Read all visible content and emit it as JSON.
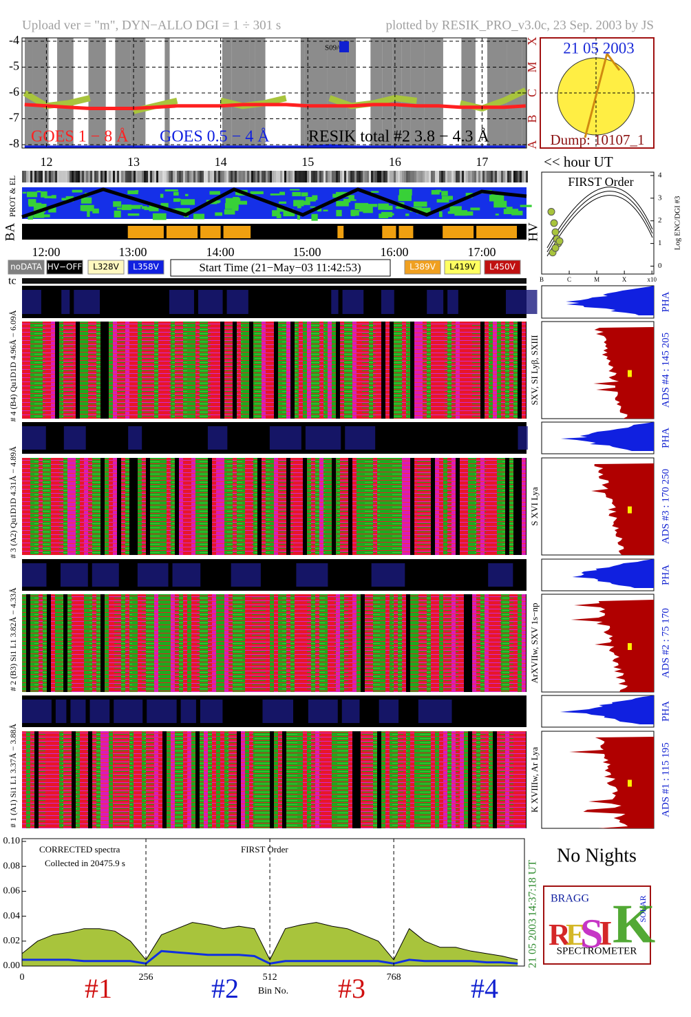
{
  "header": {
    "upload": "Upload ver = \"m\", DYN−ALLO DGI =   1 ÷ 301 s",
    "plotted": "plotted by RESIK_PRO_v3.0c, 23 Sep. 2003 by JS"
  },
  "chart_data": [
    {
      "type": "line",
      "annotation": "S09/02",
      "x": [
        11.75,
        12.0,
        12.25,
        12.5,
        12.75,
        13.0,
        13.25,
        13.5,
        13.75,
        14.0,
        14.25,
        14.5,
        14.75,
        15.0,
        15.25,
        15.5,
        15.75,
        16.0,
        16.25,
        16.5,
        16.75,
        17.0,
        17.25,
        17.5
      ],
      "series": [
        {
          "name": "GOES 1 − 8 Å",
          "color": "#ff2020",
          "values": [
            -6.45,
            -6.5,
            -6.55,
            -6.6,
            -6.6,
            -6.6,
            -6.55,
            -6.5,
            -6.5,
            -6.5,
            -6.45,
            -6.45,
            -6.45,
            -6.5,
            -6.5,
            -6.5,
            -6.45,
            -6.45,
            -6.5,
            -6.5,
            -6.55,
            -6.55,
            -6.55,
            -6.5
          ]
        },
        {
          "name": "GOES 0.5 − 4 Å",
          "color": "#1020e0",
          "values": [
            -8.1,
            -8.1,
            -8.1,
            -8.1,
            -8.1,
            -8.1,
            -8.1,
            -8.1,
            -8.1,
            -8.1,
            -8.1,
            -8.1,
            -8.1,
            -8.1,
            -8.05,
            -8.1,
            -8.1,
            -8.1,
            -8.1,
            -8.1,
            -8.1,
            -8.1,
            -8.1,
            -8.1
          ]
        },
        {
          "name": "RESIK total #2  3.8 − 4.3 Å",
          "color": "#a8c43c",
          "values": [
            -6.0,
            -6.5,
            -6.4,
            -6.2,
            null,
            -6.7,
            -6.5,
            -6.3,
            null,
            -6.3,
            -6.5,
            -6.4,
            -6.2,
            null,
            -6.2,
            -6.5,
            -6.4,
            -6.2,
            -6.3,
            null,
            -6.4,
            -6.6,
            -6.3,
            -5.9
          ]
        }
      ],
      "xlim": [
        11.72,
        17.51
      ],
      "ylim": [
        -8.13,
        -3.87
      ],
      "xticks": [
        12,
        13,
        14,
        15,
        16,
        17
      ],
      "yticks": [
        -4,
        -5,
        -6,
        -7,
        -8
      ],
      "y2lim": [
        -8.13,
        -3.87
      ],
      "y2ticks": [
        {
          "value": -4,
          "label": "X"
        },
        {
          "value": -5,
          "label": "M"
        },
        {
          "value": -6,
          "label": "C"
        },
        {
          "value": -7,
          "label": "B"
        },
        {
          "value": -8,
          "label": "A"
        }
      ],
      "grid": true
    },
    {
      "type": "scatter",
      "title": "FIRST Order",
      "ylabel": "Log ENC/DGI #3",
      "x": [
        0.35,
        0.45,
        0.5,
        0.55,
        0.6,
        0.4,
        0.65,
        0.5
      ],
      "values": [
        2.4,
        1.9,
        1.5,
        1.2,
        1.0,
        0.6,
        1.1,
        0.8
      ],
      "color": "#a8c43c",
      "xlim": [
        0,
        4.07
      ],
      "ylim": [
        -0.35,
        4.15
      ],
      "xticks": [
        {
          "value": 0,
          "label": "B"
        },
        {
          "value": 1,
          "label": "C"
        },
        {
          "value": 2,
          "label": "M"
        },
        {
          "value": 3,
          "label": "X"
        },
        {
          "value": 4,
          "label": "x10"
        }
      ],
      "yticks": [
        0,
        1,
        2,
        3,
        4
      ]
    },
    {
      "type": "area",
      "xlabel": "Bin No.",
      "annotations": [
        "CORRECTED spectra",
        "Collected in 20475.9 s",
        "FIRST Order"
      ],
      "stamp": [
        "14:37:18 UT",
        "21 05 2003"
      ],
      "segment_labels": [
        {
          "text": "#1",
          "color": "#d01010"
        },
        {
          "text": "#2",
          "color": "#1020d0"
        },
        {
          "text": "#3",
          "color": "#d01010"
        },
        {
          "text": "#4",
          "color": "#1020d0"
        }
      ],
      "x": [
        0,
        32,
        64,
        96,
        128,
        160,
        192,
        224,
        256,
        288,
        320,
        352,
        384,
        416,
        448,
        480,
        512,
        544,
        576,
        608,
        640,
        672,
        704,
        736,
        768,
        800,
        832,
        864,
        896,
        928,
        960,
        992,
        1024
      ],
      "series": [
        {
          "color": "#a8c43c",
          "values": [
            0.01,
            0.02,
            0.025,
            0.027,
            0.03,
            0.03,
            0.028,
            0.02,
            0.005,
            0.025,
            0.03,
            0.035,
            0.033,
            0.03,
            0.032,
            0.03,
            0.005,
            0.03,
            0.033,
            0.035,
            0.032,
            0.03,
            0.025,
            0.02,
            0.005,
            0.03,
            0.02,
            0.015,
            0.015,
            0.012,
            0.01,
            0.008,
            0.005
          ]
        },
        {
          "color": "#1030e0",
          "values": [
            0.005,
            0.005,
            0.005,
            0.005,
            0.004,
            0.004,
            0.004,
            0.004,
            0.002,
            0.012,
            0.011,
            0.01,
            0.009,
            0.009,
            0.009,
            0.008,
            0.002,
            0.004,
            0.004,
            0.004,
            0.004,
            0.004,
            0.004,
            0.004,
            0.002,
            0.005,
            0.004,
            0.004,
            0.004,
            0.004,
            0.003,
            0.003,
            0.002
          ]
        }
      ],
      "xlim": [
        0,
        1038
      ],
      "ylim": [
        0,
        0.1022
      ],
      "xticks": [
        0,
        256,
        512,
        768
      ],
      "yticks": [
        {
          "value": 0,
          "label": "0.00"
        },
        {
          "value": 0.02,
          "label": "0.02"
        },
        {
          "value": 0.04,
          "label": "0.04"
        },
        {
          "value": 0.06,
          "label": "0.06"
        },
        {
          "value": 0.08,
          "label": "0.08"
        },
        {
          "value": 0.1,
          "label": "0.10"
        }
      ]
    }
  ],
  "sun": {
    "date": "21 05 2003",
    "dump": "Dump: 10107_1"
  },
  "hour_ut": "<< hour UT",
  "strip_labels": [
    "PROT & EL",
    "BA",
    "HV"
  ],
  "times": [
    "12:00",
    "13:00",
    "14:00",
    "15:00",
    "16:00",
    "17:00"
  ],
  "buttons": [
    "noDATA",
    "HV−OFF",
    "L328V",
    "L358V",
    "L389V",
    "L419V",
    "L450V"
  ],
  "start_time": "Start Time (21−May−03 11:42:53)",
  "tc": "tc",
  "channels": [
    {
      "label": "# 4 (B4) Qu1D1D 4.96Å − 6.09Å",
      "lines": "SXV, SI Lyβ, SXIII",
      "pha": "PHA",
      "ads": "ADS #4 :  145 205"
    },
    {
      "label": "# 3 (A2) Qu1D1D 4.31Å − 4.89Å",
      "lines": "S XVI Lya",
      "pha": "PHA",
      "ads": "ADS #3 :  170 250"
    },
    {
      "label": "# 2 (B3) Si1 L1 3.82Å − 4.33Å",
      "lines": "ArXVIIw, SXV 1s−np",
      "pha": "PHA",
      "ads": "ADS #2 :   75 170"
    },
    {
      "label": "# 1 (A1) Si1 L1 3.37Å − 3.88Å",
      "lines": "K XVIIIw, Ar Lya",
      "pha": "PHA",
      "ads": "ADS #1 :  115 195"
    }
  ],
  "no_nights": "No Nights",
  "logo": {
    "bragg": "BRAGG",
    "letters": [
      "R",
      "E",
      "S",
      "I",
      "K"
    ],
    "solar": "SOLAR",
    "name": "SPECTROMETER"
  }
}
